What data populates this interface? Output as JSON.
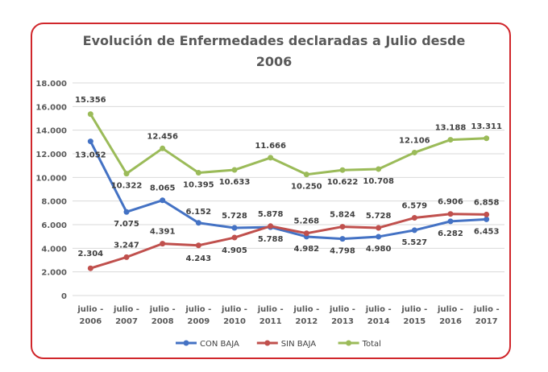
{
  "chart_data": {
    "type": "line",
    "title_lines": [
      "Evolución de Enfermedades declaradas a Julio desde",
      "2006"
    ],
    "categories": [
      [
        "julio -",
        "2006"
      ],
      [
        "julio -",
        "2007"
      ],
      [
        "julio -",
        "2008"
      ],
      [
        "julio -",
        "2009"
      ],
      [
        "julio -",
        "2010"
      ],
      [
        "julio -",
        "2011"
      ],
      [
        "julio -",
        "2012"
      ],
      [
        "julio -",
        "2013"
      ],
      [
        "julio -",
        "2014"
      ],
      [
        "julio -",
        "2015"
      ],
      [
        "julio -",
        "2016"
      ],
      [
        "julio -",
        "2017"
      ]
    ],
    "yticks": [
      "0",
      "2.000",
      "4.000",
      "6.000",
      "8.000",
      "10.000",
      "12.000",
      "14.000",
      "16.000",
      "18.000"
    ],
    "ylim": [
      0,
      18000
    ],
    "grid": true,
    "legend_position": "bottom",
    "series": [
      {
        "name": "CON BAJA",
        "color": "#4472c4",
        "values": [
          13052,
          7075,
          8065,
          6152,
          5728,
          5788,
          4982,
          4798,
          4980,
          5527,
          6282,
          6453
        ],
        "labels": [
          "13.052",
          "7.075",
          "8.065",
          "6.152",
          "5.728",
          "5.788",
          "4.982",
          "4.798",
          "4.980",
          "5.527",
          "6.282",
          "6.453"
        ]
      },
      {
        "name": "SIN BAJA",
        "color": "#c0504d",
        "values": [
          2304,
          3247,
          4391,
          4243,
          4905,
          5878,
          5268,
          5824,
          5728,
          6579,
          6906,
          6858
        ],
        "labels": [
          "2.304",
          "3.247",
          "4.391",
          "4.243",
          "4.905",
          "5.878",
          "5.268",
          "5.824",
          "5.728",
          "6.579",
          "6.906",
          "6.858"
        ]
      },
      {
        "name": "Total",
        "color": "#9bbb59",
        "values": [
          15356,
          10322,
          12456,
          10395,
          10633,
          11666,
          10250,
          10622,
          10708,
          12106,
          13188,
          13311
        ],
        "labels": [
          "15.356",
          "10.322",
          "12.456",
          "10.395",
          "10.633",
          "11.666",
          "10.250",
          "10.622",
          "10.708",
          "12.106",
          "13.188",
          "13.311"
        ]
      }
    ]
  }
}
